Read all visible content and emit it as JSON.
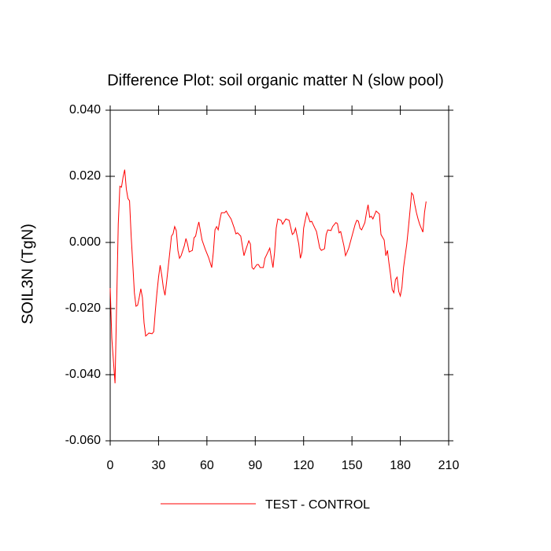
{
  "chart_data": {
    "type": "line",
    "title": "Difference Plot: soil organic matter N (slow pool)",
    "y_label": "SOIL3N  (TgN)",
    "x": [
      0,
      1,
      3,
      5,
      6,
      7,
      8,
      9,
      10,
      11,
      12,
      13,
      14,
      15,
      16,
      17,
      18,
      19,
      20,
      21,
      22,
      23,
      24,
      26,
      27,
      28,
      29,
      30,
      31,
      32,
      33,
      34,
      35,
      37,
      38,
      39,
      40,
      41,
      42,
      43,
      44,
      46,
      47,
      48,
      49,
      51,
      52,
      53,
      54,
      55,
      57,
      59,
      61,
      63,
      64,
      65,
      66,
      67,
      68,
      69,
      71,
      72,
      73,
      75,
      77,
      78,
      79,
      81,
      83,
      84,
      86,
      87,
      88,
      89,
      91,
      92,
      93,
      95,
      96,
      97,
      99,
      100,
      101,
      102,
      103,
      104,
      106,
      107,
      109,
      111,
      113,
      114,
      115,
      117,
      118,
      119,
      120,
      121,
      122,
      124,
      125,
      127,
      128,
      130,
      131,
      133,
      134,
      135,
      137,
      138,
      140,
      141,
      142,
      143,
      145,
      146,
      147,
      148,
      150,
      152,
      153,
      154,
      155,
      156,
      158,
      159,
      160,
      161,
      162,
      163,
      165,
      167,
      168,
      170,
      171,
      172,
      173,
      174,
      175,
      176,
      177,
      178,
      179,
      180,
      181,
      182,
      183,
      184,
      185,
      186,
      187,
      188,
      189,
      190,
      191,
      192,
      193,
      194,
      195,
      196
    ],
    "series": [
      {
        "name": "TEST - CONTROL",
        "color": "#ff0000",
        "values": [
          -0.0138,
          -0.029,
          -0.0426,
          0.0055,
          0.017,
          0.0167,
          0.0198,
          0.022,
          0.0162,
          0.0133,
          0.0126,
          0.002,
          -0.0064,
          -0.0152,
          -0.0193,
          -0.019,
          -0.0167,
          -0.014,
          -0.0167,
          -0.0243,
          -0.0283,
          -0.0279,
          -0.0274,
          -0.0276,
          -0.027,
          -0.0207,
          -0.0152,
          -0.0105,
          -0.0069,
          -0.01,
          -0.0138,
          -0.016,
          -0.0119,
          -0.0029,
          0.0019,
          0.0026,
          0.0048,
          0.0036,
          -0.0024,
          -0.0048,
          -0.004,
          -0.001,
          0.0012,
          -0.0005,
          -0.0029,
          -0.0024,
          0.0014,
          0.0019,
          0.0043,
          0.0062,
          0.0007,
          -0.0021,
          -0.0045,
          -0.0076,
          -0.0029,
          0.0038,
          0.0048,
          0.0038,
          0.0067,
          0.009,
          0.009,
          0.0095,
          0.0086,
          0.0071,
          0.0043,
          0.0026,
          0.0029,
          0.0019,
          -0.004,
          -0.0024,
          0.0005,
          -0.0005,
          -0.0076,
          -0.0081,
          -0.0067,
          -0.0067,
          -0.0076,
          -0.0076,
          -0.0048,
          -0.0038,
          -0.0017,
          -0.0048,
          -0.0076,
          -0.0029,
          0.0043,
          0.0071,
          0.0067,
          0.0055,
          0.0071,
          0.0067,
          0.0024,
          0.0029,
          0.0043,
          -0.0005,
          -0.0048,
          -0.0029,
          0.0043,
          0.0067,
          0.009,
          0.0062,
          0.0064,
          0.0043,
          0.0033,
          -0.0017,
          -0.0024,
          -0.0019,
          0.0024,
          0.0038,
          0.0036,
          0.0048,
          0.006,
          0.0057,
          0.0029,
          0.0033,
          -0.001,
          -0.004,
          -0.0029,
          -0.0017,
          0.0019,
          0.0055,
          0.0067,
          0.0064,
          0.0043,
          0.0038,
          0.006,
          0.009,
          0.0114,
          0.0076,
          0.0079,
          0.0071,
          0.0095,
          0.0086,
          0.0024,
          0.0007,
          -0.004,
          -0.0024,
          -0.0064,
          -0.01,
          -0.0143,
          -0.0152,
          -0.0112,
          -0.0105,
          -0.0148,
          -0.0162,
          -0.0136,
          -0.0076,
          -0.004,
          -0.0005,
          0.0043,
          0.0095,
          0.015,
          0.0143,
          0.0114,
          0.009,
          0.0071,
          0.0055,
          0.0043,
          0.0031,
          0.009,
          0.0124
        ]
      }
    ],
    "xlim": [
      0,
      210
    ],
    "xticks": [
      0,
      30,
      60,
      90,
      120,
      150,
      180,
      210
    ],
    "ylim": [
      -0.06,
      0.04
    ],
    "yticks": [
      {
        "value": -0.06,
        "label": "-0.060"
      },
      {
        "value": -0.04,
        "label": "-0.040"
      },
      {
        "value": -0.02,
        "label": "-0.020"
      },
      {
        "value": 0,
        "label": "0.000"
      },
      {
        "value": 0.02,
        "label": "0.020"
      },
      {
        "value": 0.04,
        "label": "0.040"
      }
    ],
    "legend": "bottom"
  }
}
